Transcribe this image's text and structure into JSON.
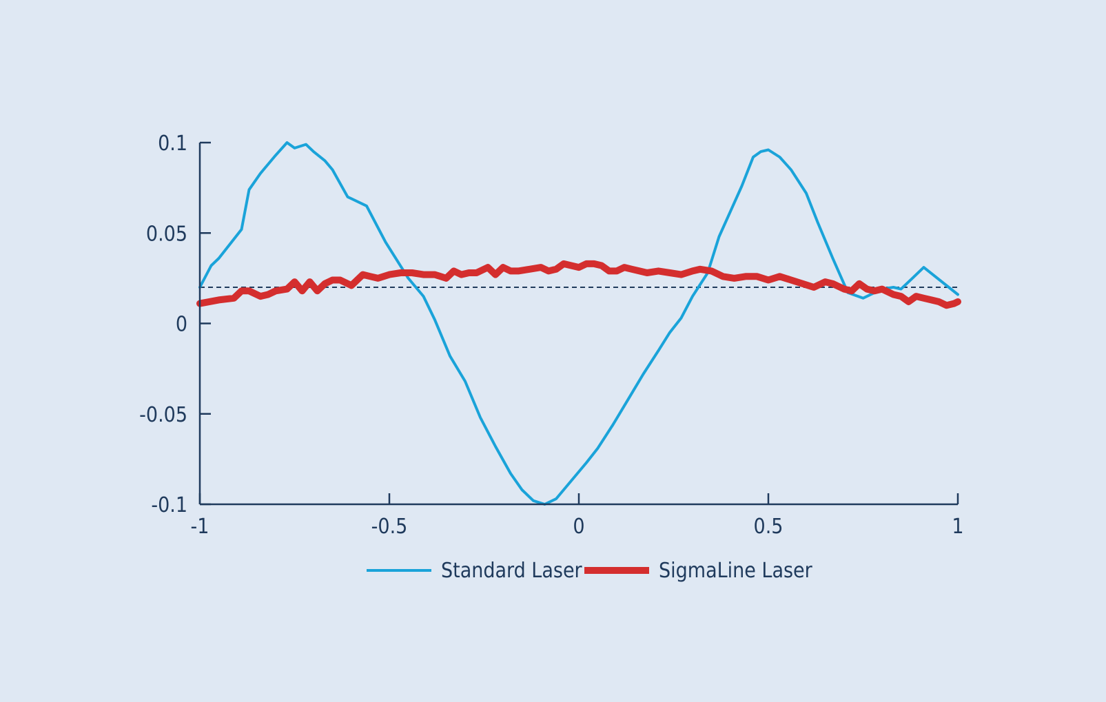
{
  "chart_data": {
    "type": "line",
    "title": "",
    "xlabel": "",
    "ylabel": "",
    "xlim": [
      -1,
      1
    ],
    "ylim": [
      -0.1,
      0.1
    ],
    "x_ticks": [
      {
        "value": -1,
        "label": "-1"
      },
      {
        "value": -0.5,
        "label": "-0.5"
      },
      {
        "value": 0,
        "label": "0"
      },
      {
        "value": 0.5,
        "label": "0.5"
      },
      {
        "value": 1,
        "label": "1"
      }
    ],
    "y_ticks": [
      {
        "value": 0.1,
        "label": "0.1"
      },
      {
        "value": 0.05,
        "label": "0.05"
      },
      {
        "value": 0,
        "label": "0"
      },
      {
        "value": -0.05,
        "label": "-0.05"
      },
      {
        "value": -0.1,
        "label": "-0.1"
      }
    ],
    "grid": false,
    "legend_position": "bottom-center",
    "reference_line": {
      "y": 0.02,
      "style": "dashed",
      "color": "#1f3a5c"
    },
    "axis_color": "#1f3a5c",
    "series": [
      {
        "name": "Standard Laser",
        "color": "#1aa3d9",
        "x": [
          -1.0,
          -0.97,
          -0.95,
          -0.92,
          -0.89,
          -0.87,
          -0.84,
          -0.82,
          -0.8,
          -0.77,
          -0.75,
          -0.72,
          -0.7,
          -0.67,
          -0.65,
          -0.61,
          -0.56,
          -0.51,
          -0.45,
          -0.41,
          -0.38,
          -0.34,
          -0.3,
          -0.26,
          -0.22,
          -0.18,
          -0.15,
          -0.12,
          -0.09,
          -0.06,
          -0.02,
          0.02,
          0.05,
          0.09,
          0.13,
          0.17,
          0.21,
          0.24,
          0.27,
          0.3,
          0.34,
          0.37,
          0.4,
          0.43,
          0.46,
          0.48,
          0.5,
          0.53,
          0.56,
          0.6,
          0.63,
          0.67,
          0.71,
          0.75,
          0.8,
          0.83,
          0.85,
          0.88,
          0.91,
          1.0
        ],
        "y": [
          0.02,
          0.032,
          0.036,
          0.044,
          0.052,
          0.074,
          0.083,
          0.088,
          0.093,
          0.1,
          0.097,
          0.099,
          0.095,
          0.09,
          0.085,
          0.07,
          0.065,
          0.045,
          0.025,
          0.015,
          0.002,
          -0.018,
          -0.032,
          -0.052,
          -0.068,
          -0.083,
          -0.092,
          -0.098,
          -0.1,
          -0.097,
          -0.087,
          -0.077,
          -0.069,
          -0.056,
          -0.042,
          -0.028,
          -0.015,
          -0.005,
          0.003,
          0.015,
          0.028,
          0.048,
          0.062,
          0.076,
          0.092,
          0.095,
          0.096,
          0.092,
          0.085,
          0.072,
          0.056,
          0.036,
          0.017,
          0.014,
          0.019,
          0.02,
          0.019,
          0.025,
          0.031,
          0.016
        ]
      },
      {
        "name": "SigmaLine Laser",
        "color": "#d42e2e",
        "x": [
          -1.0,
          -0.95,
          -0.91,
          -0.89,
          -0.87,
          -0.84,
          -0.82,
          -0.8,
          -0.77,
          -0.75,
          -0.73,
          -0.71,
          -0.69,
          -0.67,
          -0.65,
          -0.63,
          -0.6,
          -0.57,
          -0.55,
          -0.53,
          -0.5,
          -0.47,
          -0.44,
          -0.41,
          -0.38,
          -0.35,
          -0.33,
          -0.31,
          -0.29,
          -0.27,
          -0.24,
          -0.22,
          -0.2,
          -0.18,
          -0.16,
          -0.13,
          -0.1,
          -0.08,
          -0.06,
          -0.04,
          -0.02,
          0.0,
          0.02,
          0.04,
          0.06,
          0.08,
          0.1,
          0.12,
          0.14,
          0.16,
          0.18,
          0.21,
          0.24,
          0.27,
          0.3,
          0.32,
          0.35,
          0.38,
          0.41,
          0.44,
          0.47,
          0.5,
          0.53,
          0.56,
          0.59,
          0.62,
          0.65,
          0.67,
          0.7,
          0.72,
          0.74,
          0.76,
          0.78,
          0.8,
          0.83,
          0.85,
          0.87,
          0.89,
          0.91,
          0.93,
          0.95,
          0.97,
          0.99,
          1.0
        ],
        "y": [
          0.011,
          0.013,
          0.014,
          0.018,
          0.018,
          0.015,
          0.016,
          0.018,
          0.019,
          0.023,
          0.018,
          0.023,
          0.018,
          0.022,
          0.024,
          0.024,
          0.021,
          0.027,
          0.026,
          0.025,
          0.027,
          0.028,
          0.028,
          0.027,
          0.027,
          0.025,
          0.029,
          0.027,
          0.028,
          0.028,
          0.031,
          0.027,
          0.031,
          0.029,
          0.029,
          0.03,
          0.031,
          0.029,
          0.03,
          0.033,
          0.032,
          0.031,
          0.033,
          0.033,
          0.032,
          0.029,
          0.029,
          0.031,
          0.03,
          0.029,
          0.028,
          0.029,
          0.028,
          0.027,
          0.029,
          0.03,
          0.029,
          0.026,
          0.025,
          0.026,
          0.026,
          0.024,
          0.026,
          0.024,
          0.022,
          0.02,
          0.023,
          0.022,
          0.019,
          0.018,
          0.022,
          0.019,
          0.018,
          0.019,
          0.016,
          0.015,
          0.012,
          0.015,
          0.014,
          0.013,
          0.012,
          0.01,
          0.011,
          0.012
        ]
      }
    ]
  }
}
